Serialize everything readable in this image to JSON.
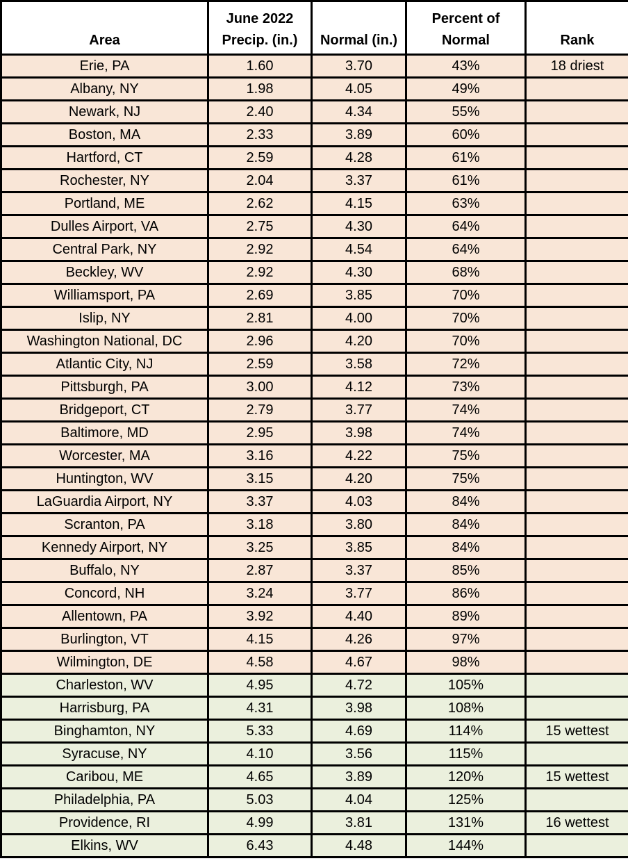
{
  "colors": {
    "dry_row_bg": "#f9e6d7",
    "wet_row_bg": "#ebf0dd",
    "header_bg": "#ffffff",
    "border": "#000000",
    "text": "#000000"
  },
  "table": {
    "headers": [
      {
        "lines": [
          "Area"
        ]
      },
      {
        "lines": [
          "June 2022",
          "Precip. (in.)"
        ]
      },
      {
        "lines": [
          "Normal (in.)"
        ]
      },
      {
        "lines": [
          "Percent of",
          "Normal"
        ]
      },
      {
        "lines": [
          "Rank"
        ]
      }
    ],
    "column_names": [
      "area-cell",
      "precip-cell",
      "normal-cell",
      "percent-cell",
      "rank-cell"
    ],
    "rows": [
      {
        "area": "Erie, PA",
        "precip": "1.60",
        "normal": "3.70",
        "percent": "43%",
        "rank": "18 driest",
        "status": "dry"
      },
      {
        "area": "Albany, NY",
        "precip": "1.98",
        "normal": "4.05",
        "percent": "49%",
        "rank": "",
        "status": "dry"
      },
      {
        "area": "Newark, NJ",
        "precip": "2.40",
        "normal": "4.34",
        "percent": "55%",
        "rank": "",
        "status": "dry"
      },
      {
        "area": "Boston, MA",
        "precip": "2.33",
        "normal": "3.89",
        "percent": "60%",
        "rank": "",
        "status": "dry"
      },
      {
        "area": "Hartford, CT",
        "precip": "2.59",
        "normal": "4.28",
        "percent": "61%",
        "rank": "",
        "status": "dry"
      },
      {
        "area": "Rochester, NY",
        "precip": "2.04",
        "normal": "3.37",
        "percent": "61%",
        "rank": "",
        "status": "dry"
      },
      {
        "area": "Portland, ME",
        "precip": "2.62",
        "normal": "4.15",
        "percent": "63%",
        "rank": "",
        "status": "dry"
      },
      {
        "area": "Dulles Airport, VA",
        "precip": "2.75",
        "normal": "4.30",
        "percent": "64%",
        "rank": "",
        "status": "dry"
      },
      {
        "area": "Central Park, NY",
        "precip": "2.92",
        "normal": "4.54",
        "percent": "64%",
        "rank": "",
        "status": "dry"
      },
      {
        "area": "Beckley, WV",
        "precip": "2.92",
        "normal": "4.30",
        "percent": "68%",
        "rank": "",
        "status": "dry"
      },
      {
        "area": "Williamsport, PA",
        "precip": "2.69",
        "normal": "3.85",
        "percent": "70%",
        "rank": "",
        "status": "dry"
      },
      {
        "area": "Islip, NY",
        "precip": "2.81",
        "normal": "4.00",
        "percent": "70%",
        "rank": "",
        "status": "dry"
      },
      {
        "area": "Washington National, DC",
        "precip": "2.96",
        "normal": "4.20",
        "percent": "70%",
        "rank": "",
        "status": "dry"
      },
      {
        "area": "Atlantic City, NJ",
        "precip": "2.59",
        "normal": "3.58",
        "percent": "72%",
        "rank": "",
        "status": "dry"
      },
      {
        "area": "Pittsburgh, PA",
        "precip": "3.00",
        "normal": "4.12",
        "percent": "73%",
        "rank": "",
        "status": "dry"
      },
      {
        "area": "Bridgeport, CT",
        "precip": "2.79",
        "normal": "3.77",
        "percent": "74%",
        "rank": "",
        "status": "dry"
      },
      {
        "area": "Baltimore, MD",
        "precip": "2.95",
        "normal": "3.98",
        "percent": "74%",
        "rank": "",
        "status": "dry"
      },
      {
        "area": "Worcester, MA",
        "precip": "3.16",
        "normal": "4.22",
        "percent": "75%",
        "rank": "",
        "status": "dry"
      },
      {
        "area": "Huntington, WV",
        "precip": "3.15",
        "normal": "4.20",
        "percent": "75%",
        "rank": "",
        "status": "dry"
      },
      {
        "area": "LaGuardia Airport, NY",
        "precip": "3.37",
        "normal": "4.03",
        "percent": "84%",
        "rank": "",
        "status": "dry"
      },
      {
        "area": "Scranton, PA",
        "precip": "3.18",
        "normal": "3.80",
        "percent": "84%",
        "rank": "",
        "status": "dry"
      },
      {
        "area": "Kennedy Airport, NY",
        "precip": "3.25",
        "normal": "3.85",
        "percent": "84%",
        "rank": "",
        "status": "dry"
      },
      {
        "area": "Buffalo, NY",
        "precip": "2.87",
        "normal": "3.37",
        "percent": "85%",
        "rank": "",
        "status": "dry"
      },
      {
        "area": "Concord, NH",
        "precip": "3.24",
        "normal": "3.77",
        "percent": "86%",
        "rank": "",
        "status": "dry"
      },
      {
        "area": "Allentown, PA",
        "precip": "3.92",
        "normal": "4.40",
        "percent": "89%",
        "rank": "",
        "status": "dry"
      },
      {
        "area": "Burlington, VT",
        "precip": "4.15",
        "normal": "4.26",
        "percent": "97%",
        "rank": "",
        "status": "dry"
      },
      {
        "area": "Wilmington, DE",
        "precip": "4.58",
        "normal": "4.67",
        "percent": "98%",
        "rank": "",
        "status": "dry"
      },
      {
        "area": "Charleston, WV",
        "precip": "4.95",
        "normal": "4.72",
        "percent": "105%",
        "rank": "",
        "status": "wet"
      },
      {
        "area": "Harrisburg, PA",
        "precip": "4.31",
        "normal": "3.98",
        "percent": "108%",
        "rank": "",
        "status": "wet"
      },
      {
        "area": "Binghamton, NY",
        "precip": "5.33",
        "normal": "4.69",
        "percent": "114%",
        "rank": "15 wettest",
        "status": "wet"
      },
      {
        "area": "Syracuse, NY",
        "precip": "4.10",
        "normal": "3.56",
        "percent": "115%",
        "rank": "",
        "status": "wet"
      },
      {
        "area": "Caribou, ME",
        "precip": "4.65",
        "normal": "3.89",
        "percent": "120%",
        "rank": "15 wettest",
        "status": "wet"
      },
      {
        "area": "Philadelphia, PA",
        "precip": "5.03",
        "normal": "4.04",
        "percent": "125%",
        "rank": "",
        "status": "wet"
      },
      {
        "area": "Providence, RI",
        "precip": "4.99",
        "normal": "3.81",
        "percent": "131%",
        "rank": "16 wettest",
        "status": "wet"
      },
      {
        "area": "Elkins, WV",
        "precip": "6.43",
        "normal": "4.48",
        "percent": "144%",
        "rank": "",
        "status": "wet"
      }
    ]
  },
  "chart_data": {
    "type": "table",
    "title": "June 2022 precipitation versus normal by area",
    "columns": [
      "Area",
      "June 2022 Precip. (in.)",
      "Normal (in.)",
      "Percent of Normal",
      "Rank"
    ],
    "rows": [
      [
        "Erie, PA",
        1.6,
        3.7,
        43,
        "18 driest"
      ],
      [
        "Albany, NY",
        1.98,
        4.05,
        49,
        ""
      ],
      [
        "Newark, NJ",
        2.4,
        4.34,
        55,
        ""
      ],
      [
        "Boston, MA",
        2.33,
        3.89,
        60,
        ""
      ],
      [
        "Hartford, CT",
        2.59,
        4.28,
        61,
        ""
      ],
      [
        "Rochester, NY",
        2.04,
        3.37,
        61,
        ""
      ],
      [
        "Portland, ME",
        2.62,
        4.15,
        63,
        ""
      ],
      [
        "Dulles Airport, VA",
        2.75,
        4.3,
        64,
        ""
      ],
      [
        "Central Park, NY",
        2.92,
        4.54,
        64,
        ""
      ],
      [
        "Beckley, WV",
        2.92,
        4.3,
        68,
        ""
      ],
      [
        "Williamsport, PA",
        2.69,
        3.85,
        70,
        ""
      ],
      [
        "Islip, NY",
        2.81,
        4.0,
        70,
        ""
      ],
      [
        "Washington National, DC",
        2.96,
        4.2,
        70,
        ""
      ],
      [
        "Atlantic City, NJ",
        2.59,
        3.58,
        72,
        ""
      ],
      [
        "Pittsburgh, PA",
        3.0,
        4.12,
        73,
        ""
      ],
      [
        "Bridgeport, CT",
        2.79,
        3.77,
        74,
        ""
      ],
      [
        "Baltimore, MD",
        2.95,
        3.98,
        74,
        ""
      ],
      [
        "Worcester, MA",
        3.16,
        4.22,
        75,
        ""
      ],
      [
        "Huntington, WV",
        3.15,
        4.2,
        75,
        ""
      ],
      [
        "LaGuardia Airport, NY",
        3.37,
        4.03,
        84,
        ""
      ],
      [
        "Scranton, PA",
        3.18,
        3.8,
        84,
        ""
      ],
      [
        "Kennedy Airport, NY",
        3.25,
        3.85,
        84,
        ""
      ],
      [
        "Buffalo, NY",
        2.87,
        3.37,
        85,
        ""
      ],
      [
        "Concord, NH",
        3.24,
        3.77,
        86,
        ""
      ],
      [
        "Allentown, PA",
        3.92,
        4.4,
        89,
        ""
      ],
      [
        "Burlington, VT",
        4.15,
        4.26,
        97,
        ""
      ],
      [
        "Wilmington, DE",
        4.58,
        4.67,
        98,
        ""
      ],
      [
        "Charleston, WV",
        4.95,
        4.72,
        105,
        ""
      ],
      [
        "Harrisburg, PA",
        4.31,
        3.98,
        108,
        ""
      ],
      [
        "Binghamton, NY",
        5.33,
        4.69,
        114,
        "15 wettest"
      ],
      [
        "Syracuse, NY",
        4.1,
        3.56,
        115,
        ""
      ],
      [
        "Caribou, ME",
        4.65,
        3.89,
        120,
        "15 wettest"
      ],
      [
        "Philadelphia, PA",
        5.03,
        4.04,
        125,
        ""
      ],
      [
        "Providence, RI",
        4.99,
        3.81,
        131,
        "16 wettest"
      ],
      [
        "Elkins, WV",
        6.43,
        4.48,
        144,
        ""
      ]
    ],
    "row_color_legend": {
      "below_normal_bg": "#f9e6d7",
      "at_or_above_normal_bg": "#ebf0dd"
    },
    "percent_unit": "%"
  }
}
